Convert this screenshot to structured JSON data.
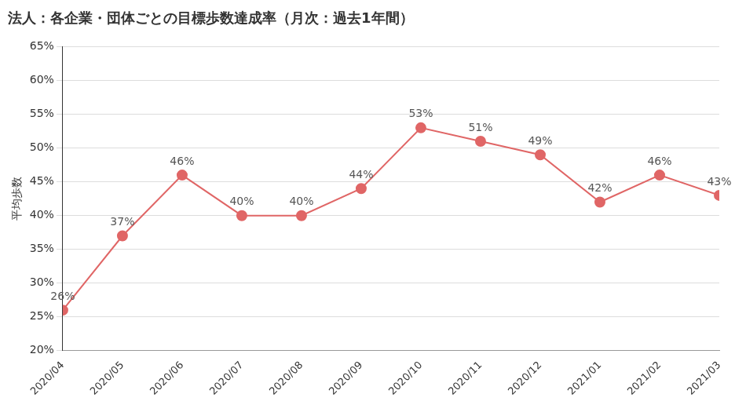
{
  "chart_data": {
    "type": "line",
    "title": "法人：各企業・団体ごとの目標歩数達成率（月次：過去1年間）",
    "y_label": "平均歩数",
    "categories": [
      "2020/04",
      "2020/05",
      "2020/06",
      "2020/07",
      "2020/08",
      "2020/09",
      "2020/10",
      "2020/11",
      "2020/12",
      "2021/01",
      "2021/02",
      "2021/03"
    ],
    "values": [
      26,
      37,
      46,
      40,
      40,
      44,
      53,
      51,
      49,
      42,
      46,
      43
    ],
    "value_labels": [
      "26%",
      "37%",
      "46%",
      "40%",
      "40%",
      "44%",
      "53%",
      "51%",
      "49%",
      "42%",
      "46%",
      "43%"
    ],
    "color": "#e06666",
    "marker": "circle",
    "line_style": "solid",
    "ylim": [
      20,
      65
    ],
    "yticks": [
      {
        "value": 20,
        "label": "20%"
      },
      {
        "value": 25,
        "label": "25%"
      },
      {
        "value": 30,
        "label": "30%"
      },
      {
        "value": 35,
        "label": "35%"
      },
      {
        "value": 40,
        "label": "40%"
      },
      {
        "value": 45,
        "label": "45%"
      },
      {
        "value": 50,
        "label": "50%"
      },
      {
        "value": 55,
        "label": "55%"
      },
      {
        "value": 60,
        "label": "60%"
      },
      {
        "value": 65,
        "label": "65%"
      }
    ],
    "grid": true,
    "data_labels": true
  }
}
